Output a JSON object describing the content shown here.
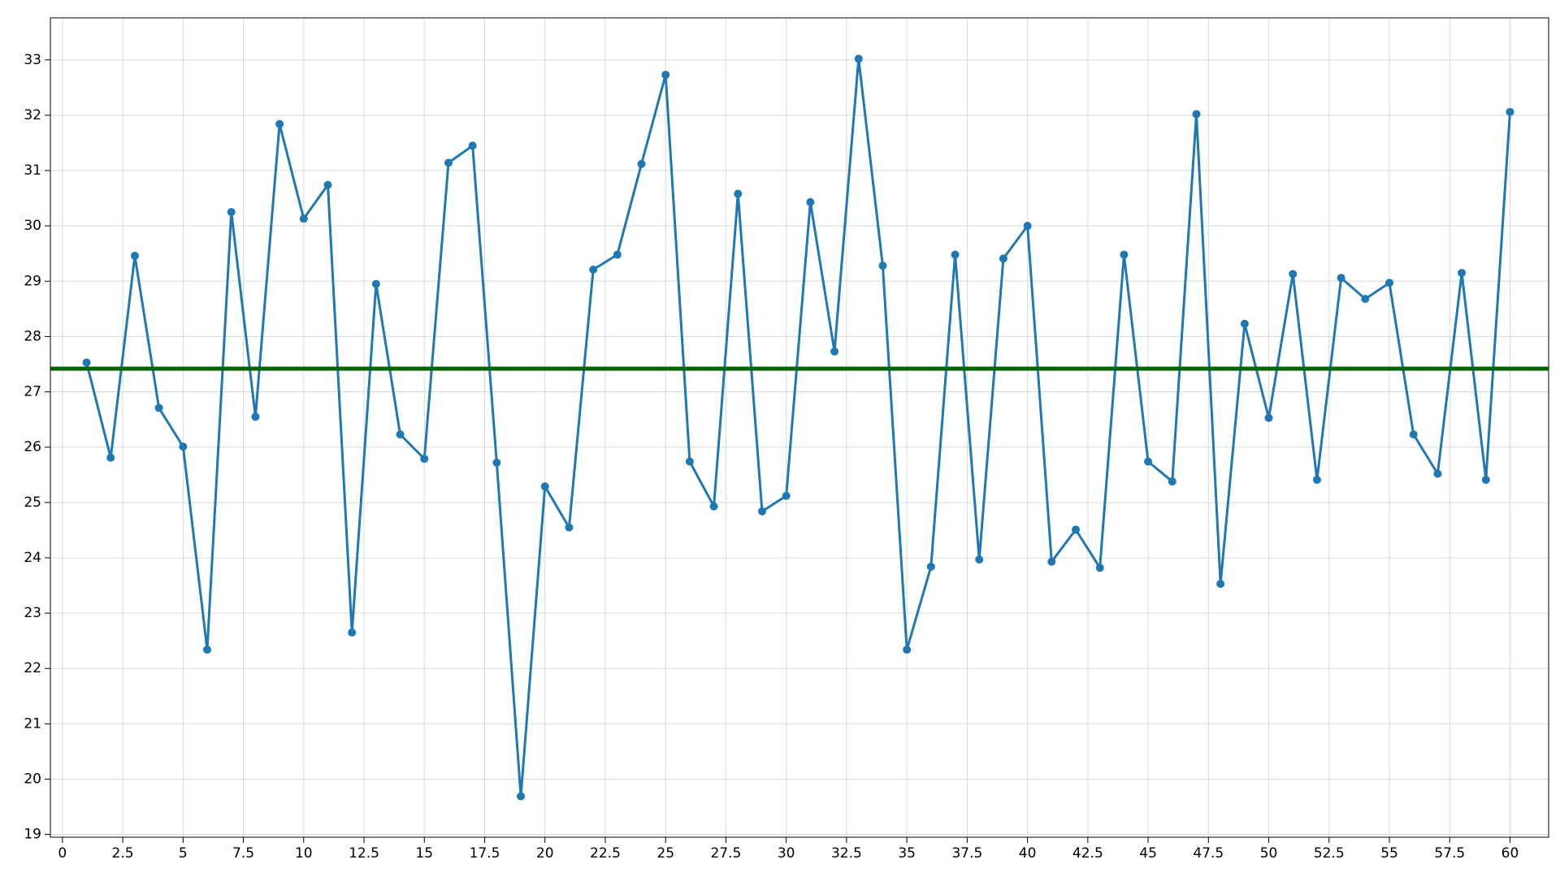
{
  "chart_data": {
    "type": "line",
    "x": [
      1,
      2,
      3,
      4,
      5,
      6,
      7,
      8,
      9,
      10,
      11,
      12,
      13,
      14,
      15,
      16,
      17,
      18,
      19,
      20,
      21,
      22,
      23,
      24,
      25,
      26,
      27,
      28,
      29,
      30,
      31,
      32,
      33,
      34,
      35,
      36,
      37,
      38,
      39,
      40,
      41,
      42,
      43,
      44,
      45,
      46,
      47,
      48,
      49,
      50,
      51,
      52,
      53,
      54,
      55,
      56,
      57,
      58,
      59,
      60
    ],
    "series": [
      {
        "color": "#1f77b4",
        "values": [
          27.53,
          25.81,
          29.46,
          26.71,
          26.01,
          22.34,
          30.25,
          26.55,
          31.84,
          30.13,
          30.74,
          22.65,
          28.95,
          26.23,
          25.79,
          31.14,
          31.45,
          25.72,
          19.69,
          25.29,
          24.55,
          29.21,
          29.48,
          31.12,
          32.73,
          25.74,
          24.93,
          30.58,
          24.84,
          25.12,
          30.43,
          27.73,
          33.02,
          29.28,
          22.34,
          23.84,
          29.48,
          23.97,
          29.41,
          30.0,
          23.93,
          24.51,
          23.82,
          29.48,
          25.74,
          25.38,
          32.02,
          23.53,
          28.23,
          26.53,
          29.13,
          25.41,
          29.06,
          28.68,
          28.97,
          26.23,
          25.52,
          29.15,
          25.41,
          32.06
        ]
      }
    ],
    "hline": {
      "value": 27.42,
      "color": "#006400"
    },
    "xlim": [
      -0.5,
      61.6
    ],
    "ylim": [
      18.95,
      33.76
    ],
    "xticks": [
      0,
      2.5,
      5,
      7.5,
      10,
      12.5,
      15,
      17.5,
      20,
      22.5,
      25,
      27.5,
      30,
      32.5,
      35,
      37.5,
      40,
      42.5,
      45,
      47.5,
      50,
      52.5,
      55,
      57.5,
      60
    ],
    "yticks": [
      19,
      20,
      21,
      22,
      23,
      24,
      25,
      26,
      27,
      28,
      29,
      30,
      31,
      32,
      33
    ],
    "grid": true
  }
}
